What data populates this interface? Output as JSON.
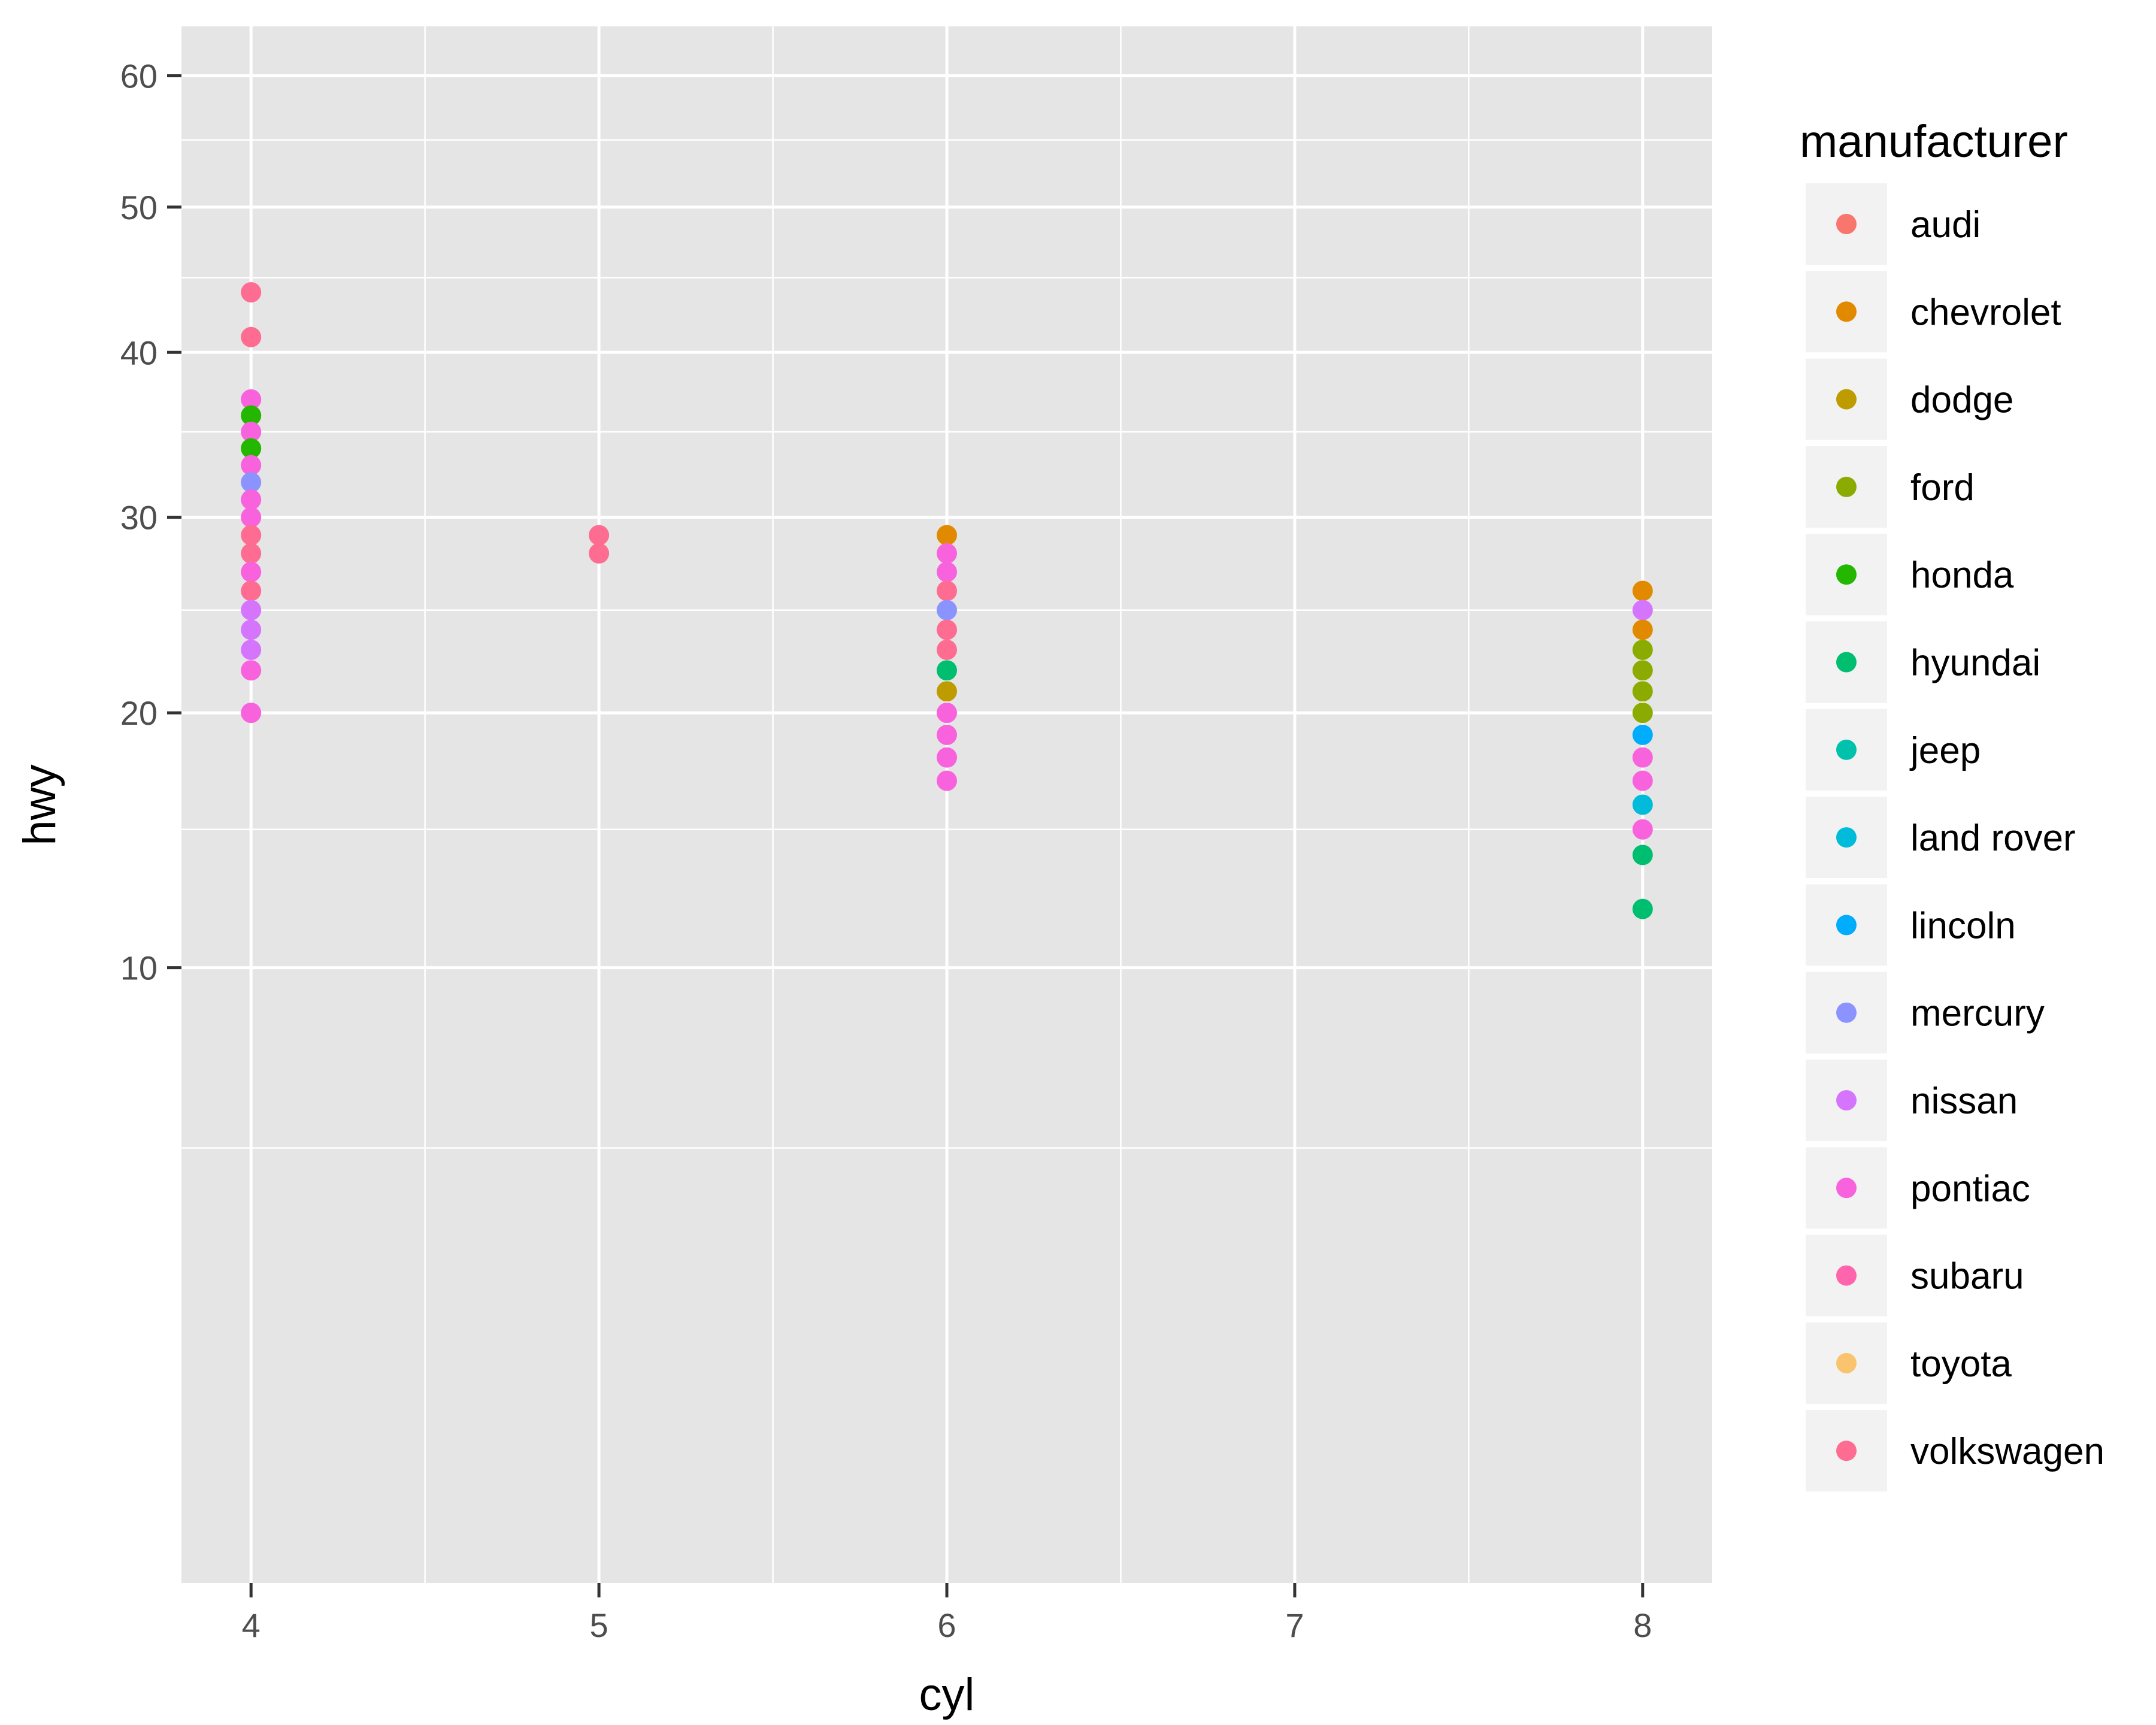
{
  "chart_data": {
    "type": "scatter",
    "xlabel": "cyl",
    "ylabel": "hwy",
    "x_ticks": [
      4,
      5,
      6,
      7,
      8
    ],
    "y_ticks": [
      10,
      20,
      30,
      40,
      50,
      60
    ],
    "y_scale": "sqrt",
    "xlim": [
      3.8,
      8.2
    ],
    "ylim": [
      0,
      64
    ],
    "legend": {
      "title": "manufacturer",
      "position": "right",
      "entries": [
        {
          "name": "audi",
          "color": "#F8766D"
        },
        {
          "name": "chevrolet",
          "color": "#E18A00"
        },
        {
          "name": "dodge",
          "color": "#BE9C00"
        },
        {
          "name": "ford",
          "color": "#8CAB00"
        },
        {
          "name": "honda",
          "color": "#24B700"
        },
        {
          "name": "hyundai",
          "color": "#00BE70"
        },
        {
          "name": "jeep",
          "color": "#00C1AB"
        },
        {
          "name": "land rover",
          "color": "#00BBDA"
        },
        {
          "name": "lincoln",
          "color": "#00ACFC"
        },
        {
          "name": "mercury",
          "color": "#8B93FF"
        },
        {
          "name": "nissan",
          "color": "#D575FE"
        },
        {
          "name": "pontiac",
          "color": "#F962DD"
        },
        {
          "name": "subaru",
          "color": "#FF65AC"
        },
        {
          "name": "toyota",
          "color": "#F9C46D"
        },
        {
          "name": "volkswagen",
          "color": "#FF6C91"
        }
      ]
    },
    "points": [
      {
        "x": 4,
        "y": 44,
        "color": "#FF6C91"
      },
      {
        "x": 4,
        "y": 41,
        "color": "#FF6C91"
      },
      {
        "x": 4,
        "y": 37,
        "color": "#F962DD"
      },
      {
        "x": 4,
        "y": 36,
        "color": "#24B700"
      },
      {
        "x": 4,
        "y": 35,
        "color": "#F962DD"
      },
      {
        "x": 4,
        "y": 34,
        "color": "#24B700"
      },
      {
        "x": 4,
        "y": 33,
        "color": "#F962DD"
      },
      {
        "x": 4,
        "y": 32,
        "color": "#8B93FF"
      },
      {
        "x": 4,
        "y": 31,
        "color": "#F962DD"
      },
      {
        "x": 4,
        "y": 30,
        "color": "#F962DD"
      },
      {
        "x": 4,
        "y": 29,
        "color": "#FF6C91"
      },
      {
        "x": 4,
        "y": 28,
        "color": "#FF6C91"
      },
      {
        "x": 4,
        "y": 27,
        "color": "#F962DD"
      },
      {
        "x": 4,
        "y": 26,
        "color": "#FF6C91"
      },
      {
        "x": 4,
        "y": 25,
        "color": "#D575FE"
      },
      {
        "x": 4,
        "y": 24,
        "color": "#D575FE"
      },
      {
        "x": 4,
        "y": 23,
        "color": "#D575FE"
      },
      {
        "x": 4,
        "y": 22,
        "color": "#F962DD"
      },
      {
        "x": 4,
        "y": 20,
        "color": "#F962DD"
      },
      {
        "x": 5,
        "y": 29,
        "color": "#FF6C91"
      },
      {
        "x": 5,
        "y": 28,
        "color": "#FF6C91"
      },
      {
        "x": 6,
        "y": 29,
        "color": "#E18A00"
      },
      {
        "x": 6,
        "y": 28,
        "color": "#F962DD"
      },
      {
        "x": 6,
        "y": 27,
        "color": "#F962DD"
      },
      {
        "x": 6,
        "y": 26,
        "color": "#FF6C91"
      },
      {
        "x": 6,
        "y": 25,
        "color": "#8B93FF"
      },
      {
        "x": 6,
        "y": 24,
        "color": "#FF6C91"
      },
      {
        "x": 6,
        "y": 23,
        "color": "#FF6C91"
      },
      {
        "x": 6,
        "y": 22,
        "color": "#00BE70"
      },
      {
        "x": 6,
        "y": 21,
        "color": "#BE9C00"
      },
      {
        "x": 6,
        "y": 20,
        "color": "#F962DD"
      },
      {
        "x": 6,
        "y": 19,
        "color": "#F962DD"
      },
      {
        "x": 6,
        "y": 18,
        "color": "#F962DD"
      },
      {
        "x": 6,
        "y": 17,
        "color": "#F962DD"
      },
      {
        "x": 8,
        "y": 26,
        "color": "#E18A00"
      },
      {
        "x": 8,
        "y": 25,
        "color": "#D575FE"
      },
      {
        "x": 8,
        "y": 24,
        "color": "#E18A00"
      },
      {
        "x": 8,
        "y": 23,
        "color": "#8CAB00"
      },
      {
        "x": 8,
        "y": 22,
        "color": "#8CAB00"
      },
      {
        "x": 8,
        "y": 21,
        "color": "#8CAB00"
      },
      {
        "x": 8,
        "y": 20,
        "color": "#8CAB00"
      },
      {
        "x": 8,
        "y": 19,
        "color": "#00ACFC"
      },
      {
        "x": 8,
        "y": 18,
        "color": "#F962DD"
      },
      {
        "x": 8,
        "y": 17,
        "color": "#F962DD"
      },
      {
        "x": 8,
        "y": 16,
        "color": "#00BBDA"
      },
      {
        "x": 8,
        "y": 15,
        "color": "#F962DD"
      },
      {
        "x": 8,
        "y": 14,
        "color": "#00BE70"
      },
      {
        "x": 8,
        "y": 12,
        "color": "#00BE70"
      }
    ]
  }
}
